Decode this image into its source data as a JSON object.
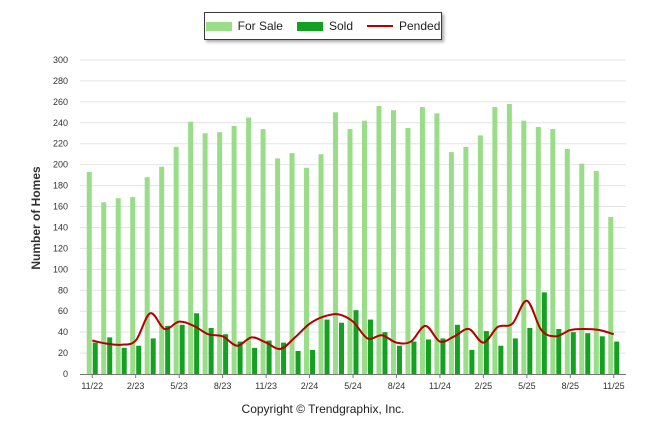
{
  "chart_data": {
    "type": "bar",
    "ylabel": "Number of Homes",
    "ylim": [
      0,
      300
    ],
    "ytick_step": 20,
    "grid": true,
    "legend_position": "top-center",
    "x_tick_labels": [
      {
        "index": 0,
        "label": "11/22"
      },
      {
        "index": 3,
        "label": "2/23"
      },
      {
        "index": 6,
        "label": "5/23"
      },
      {
        "index": 9,
        "label": "8/23"
      },
      {
        "index": 12,
        "label": "11/23"
      },
      {
        "index": 15,
        "label": "2/24"
      },
      {
        "index": 18,
        "label": "5/24"
      },
      {
        "index": 21,
        "label": "8/24"
      },
      {
        "index": 24,
        "label": "11/24"
      },
      {
        "index": 27,
        "label": "2/25"
      },
      {
        "index": 30,
        "label": "5/25"
      },
      {
        "index": 33,
        "label": "8/25"
      },
      {
        "index": 36,
        "label": "11/25"
      }
    ],
    "series": [
      {
        "name": "For Sale",
        "type": "bar",
        "color": "#99dd88",
        "values": [
          193,
          164,
          168,
          169,
          188,
          198,
          217,
          241,
          230,
          231,
          237,
          245,
          234,
          206,
          211,
          197,
          210,
          250,
          234,
          242,
          256,
          252,
          235,
          255,
          249,
          212,
          217,
          228,
          255,
          258,
          242,
          236,
          234,
          215,
          201,
          194,
          150
        ]
      },
      {
        "name": "Sold",
        "type": "bar",
        "color": "#14a020",
        "values": [
          30,
          35,
          25,
          27,
          34,
          46,
          47,
          58,
          44,
          38,
          31,
          25,
          32,
          30,
          22,
          23,
          52,
          49,
          61,
          52,
          40,
          27,
          31,
          33,
          34,
          47,
          23,
          41,
          27,
          34,
          44,
          78,
          43,
          40,
          39,
          36,
          31
        ]
      },
      {
        "name": "Pended",
        "type": "line",
        "color": "#b30000",
        "values": [
          32,
          29,
          28,
          32,
          58,
          43,
          50,
          46,
          38,
          36,
          27,
          35,
          30,
          24,
          35,
          48,
          55,
          57,
          50,
          34,
          37,
          30,
          31,
          46,
          31,
          36,
          43,
          30,
          45,
          48,
          70,
          42,
          36,
          42,
          43,
          42,
          38
        ]
      }
    ]
  },
  "legend": {
    "items": [
      {
        "label": "For Sale",
        "color": "#99dd88"
      },
      {
        "label": "Sold",
        "color": "#14a020"
      },
      {
        "label": "Pended",
        "color": "#b30000"
      }
    ]
  },
  "footer": {
    "copyright": "Copyright © Trendgraphix, Inc."
  }
}
